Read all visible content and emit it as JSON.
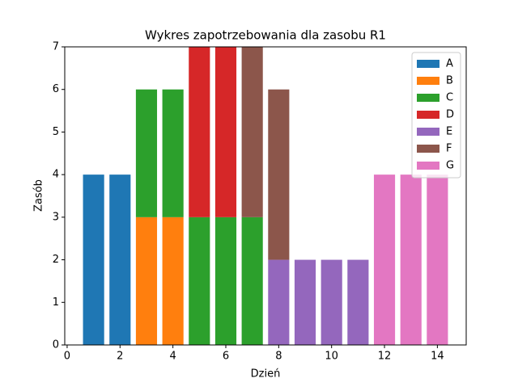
{
  "chart_data": {
    "type": "stacked_bar",
    "title": "Wykres zapotrzebowania dla zasobu R1",
    "x_label": "Dzień",
    "y_label": "Zasób",
    "x": [
      1,
      2,
      3,
      4,
      5,
      6,
      7,
      8,
      9,
      10,
      11,
      12,
      13,
      14
    ],
    "series": [
      {
        "name": "A",
        "color": "#1f77b4",
        "values": [
          4,
          4,
          null,
          null,
          null,
          null,
          null,
          null,
          null,
          null,
          null,
          null,
          null,
          null
        ]
      },
      {
        "name": "B",
        "color": "#ff7f0e",
        "values": [
          null,
          null,
          3,
          3,
          null,
          null,
          null,
          null,
          null,
          null,
          null,
          null,
          null,
          null
        ]
      },
      {
        "name": "C",
        "color": "#2ca02c",
        "values": [
          null,
          null,
          3,
          3,
          3,
          3,
          3,
          null,
          null,
          null,
          null,
          null,
          null,
          null
        ]
      },
      {
        "name": "D",
        "color": "#d62728",
        "values": [
          null,
          null,
          null,
          null,
          4,
          4,
          null,
          null,
          null,
          null,
          null,
          null,
          null,
          null
        ]
      },
      {
        "name": "E",
        "color": "#9467bd",
        "values": [
          null,
          null,
          null,
          null,
          null,
          null,
          null,
          2,
          2,
          2,
          2,
          null,
          null,
          null
        ]
      },
      {
        "name": "F",
        "color": "#8c564b",
        "values": [
          null,
          null,
          null,
          null,
          null,
          null,
          4,
          4,
          null,
          null,
          null,
          null,
          null,
          null
        ]
      },
      {
        "name": "G",
        "color": "#e377c2",
        "values": [
          null,
          null,
          null,
          null,
          null,
          null,
          null,
          null,
          null,
          null,
          null,
          4,
          4,
          4
        ]
      }
    ],
    "xlim": [
      -0.09,
      15.09
    ],
    "xticks": [
      0,
      2,
      4,
      6,
      8,
      10,
      12,
      14
    ],
    "ylim": [
      0,
      7
    ],
    "yticks": [
      0,
      1,
      2,
      3,
      4,
      5,
      6,
      7
    ],
    "bar_width": 0.8,
    "legend": "upper right"
  }
}
